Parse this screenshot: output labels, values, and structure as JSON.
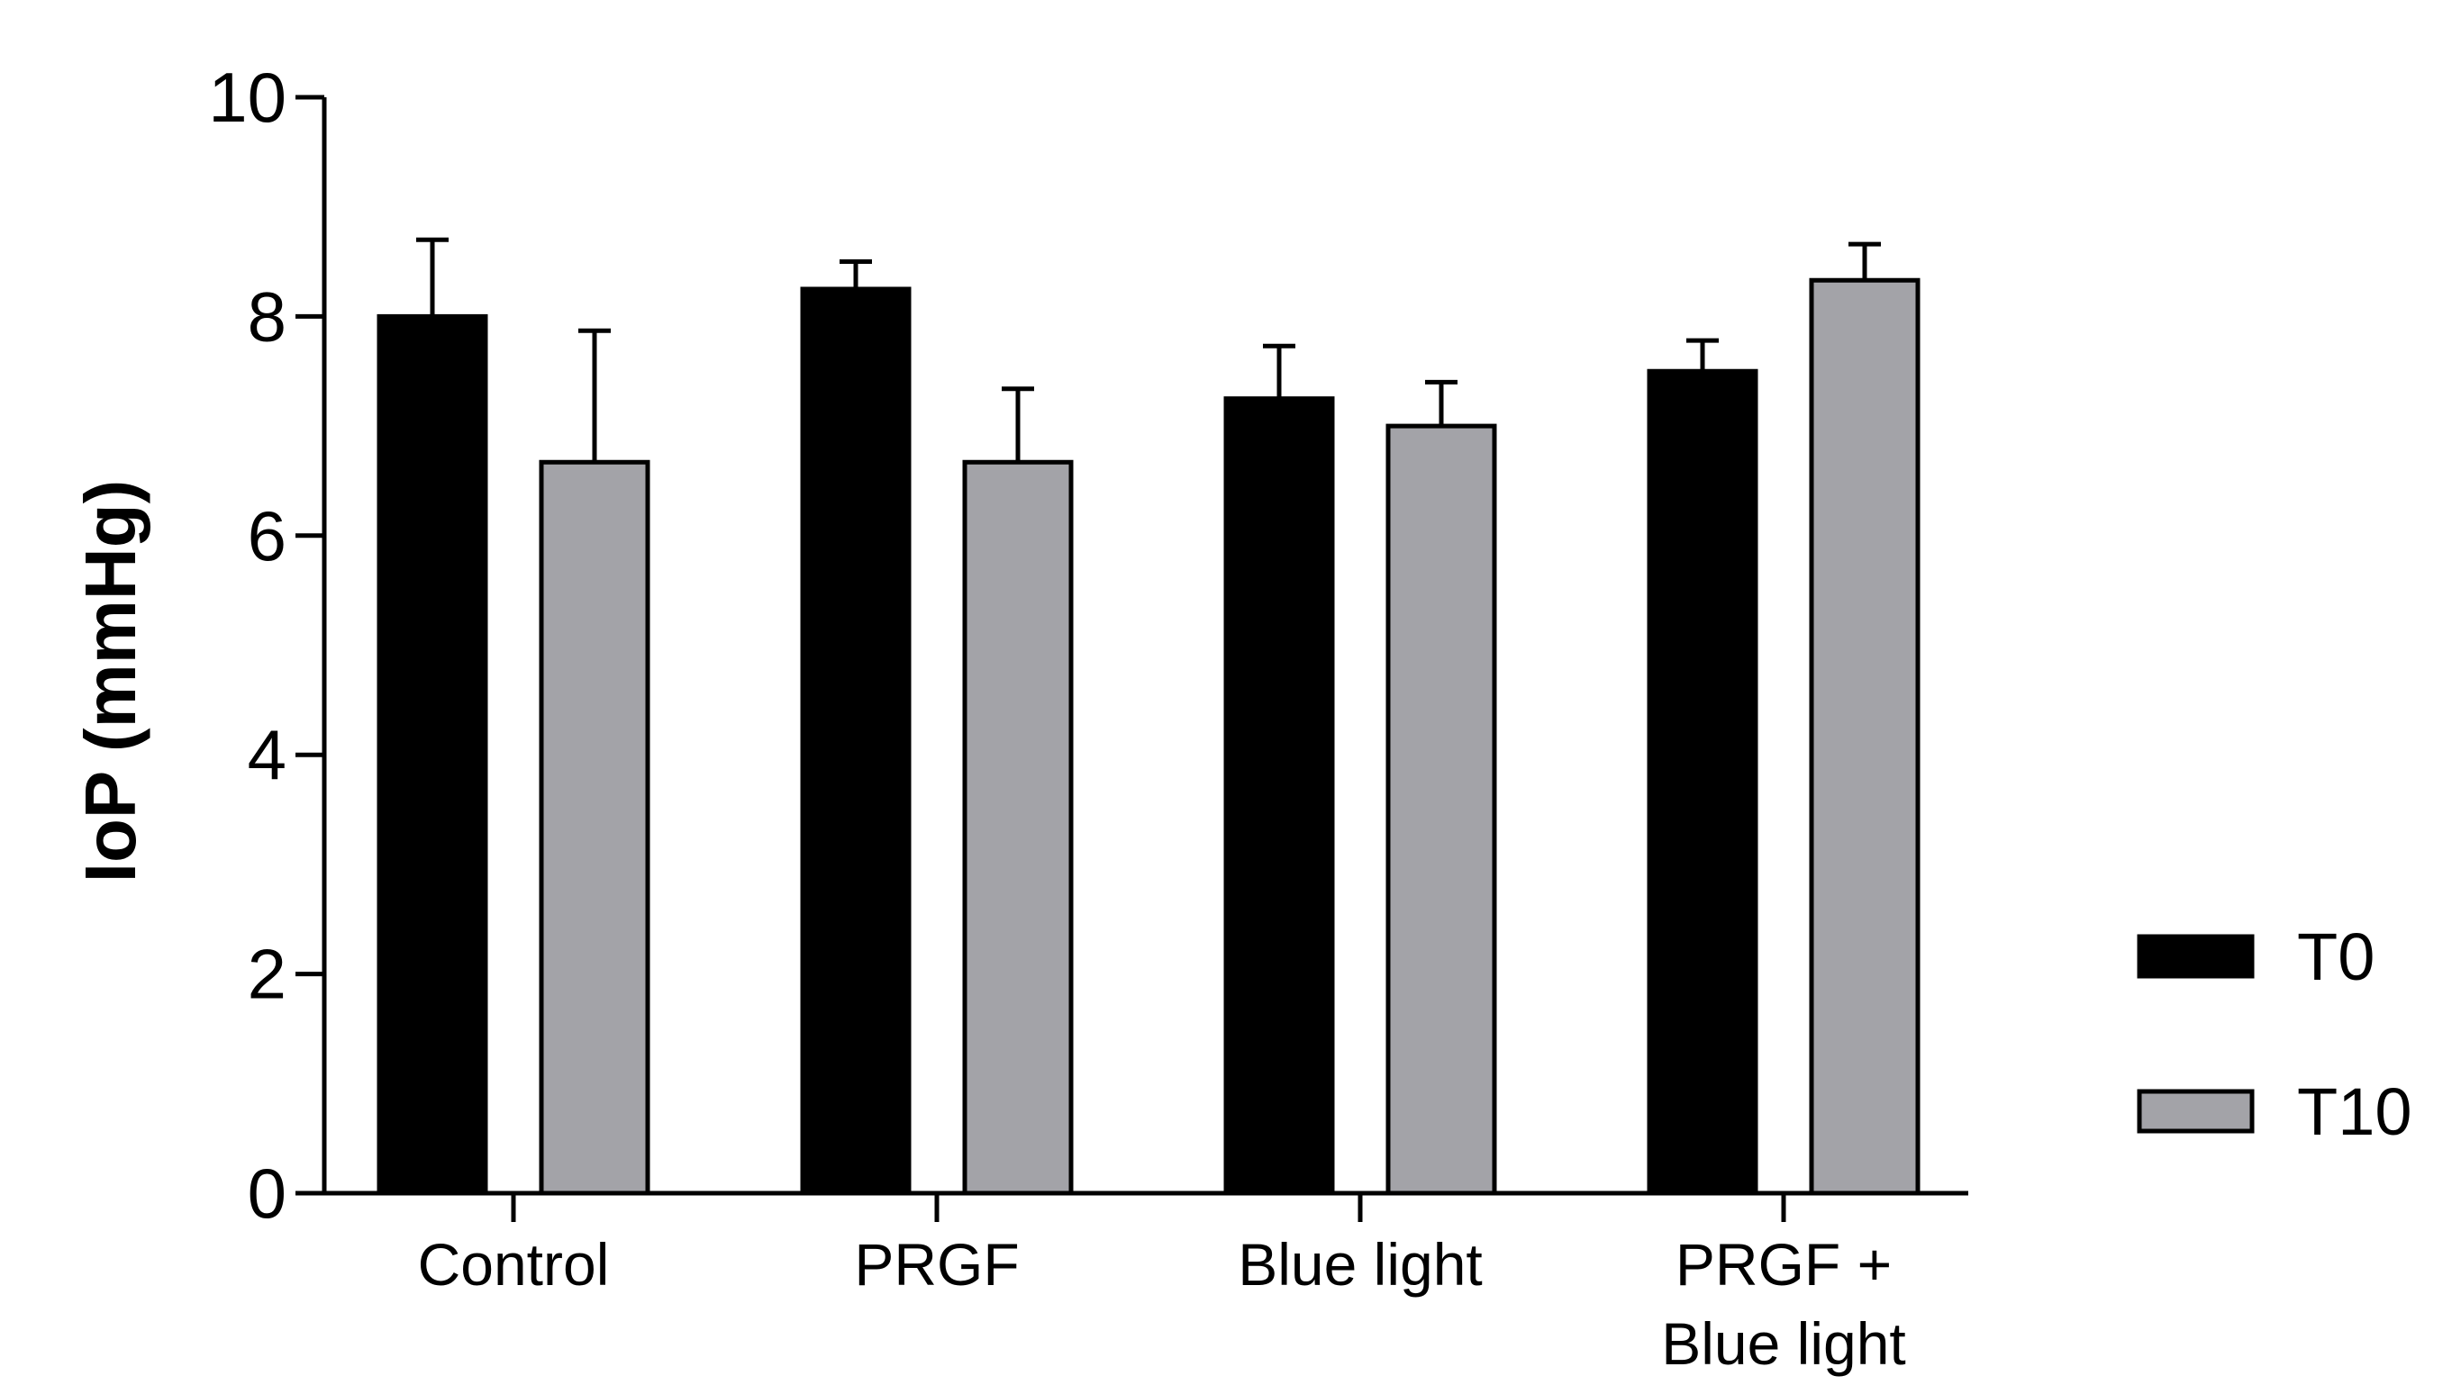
{
  "chart_data": {
    "type": "bar",
    "ylabel": "IoP (mmHg)",
    "xlabel": "",
    "ylim": [
      0,
      10
    ],
    "yticks": [
      "0",
      "2",
      "4",
      "6",
      "8",
      "10"
    ],
    "categories": [
      [
        "Control"
      ],
      [
        "PRGF"
      ],
      [
        "Blue light"
      ],
      [
        "PRGF +",
        "Blue light"
      ]
    ],
    "series": [
      {
        "name": "T0",
        "color": "#000000",
        "values": [
          8.0,
          8.25,
          7.25,
          7.5
        ],
        "errors": [
          0.7,
          0.25,
          0.48,
          0.28
        ]
      },
      {
        "name": "T10",
        "color": "#a3a3a8",
        "values": [
          6.67,
          6.67,
          7.0,
          8.33
        ],
        "errors": [
          1.2,
          0.67,
          0.4,
          0.33
        ]
      }
    ],
    "legend_position": "right",
    "grid": false
  }
}
